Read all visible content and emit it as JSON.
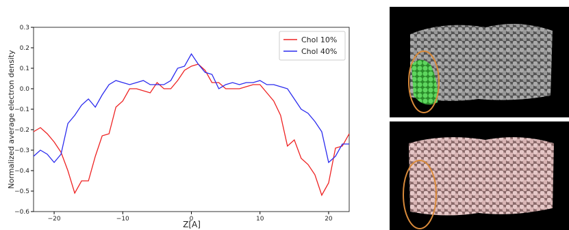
{
  "chart_data": {
    "type": "line",
    "xlabel": "Z[A]",
    "ylabel": "Normalized average electron density",
    "x": [
      -23,
      -22,
      -21,
      -20,
      -19,
      -18,
      -17,
      -16,
      -15,
      -14,
      -13,
      -12,
      -11,
      -10,
      -9,
      -8,
      -7,
      -6,
      -5,
      -4,
      -3,
      -2,
      -1,
      0,
      1,
      2,
      3,
      4,
      5,
      6,
      7,
      8,
      9,
      10,
      11,
      12,
      13,
      14,
      15,
      16,
      17,
      18,
      19,
      20,
      21,
      22,
      23
    ],
    "series": [
      {
        "name": "Chol 10%",
        "color": "#ee2222",
        "values": [
          -0.21,
          -0.19,
          -0.22,
          -0.26,
          -0.31,
          -0.4,
          -0.51,
          -0.45,
          -0.45,
          -0.33,
          -0.23,
          -0.22,
          -0.09,
          -0.06,
          0.0,
          0.0,
          -0.01,
          -0.02,
          0.03,
          0.0,
          0.0,
          0.04,
          0.09,
          0.11,
          0.12,
          0.09,
          0.03,
          0.03,
          0.0,
          0.0,
          0.0,
          0.01,
          0.02,
          0.02,
          -0.02,
          -0.06,
          -0.13,
          -0.28,
          -0.25,
          -0.34,
          -0.37,
          -0.42,
          -0.52,
          -0.46,
          -0.29,
          -0.28,
          -0.22
        ]
      },
      {
        "name": "Chol 40%",
        "color": "#2a2aee",
        "values": [
          -0.33,
          -0.3,
          -0.32,
          -0.36,
          -0.32,
          -0.17,
          -0.13,
          -0.08,
          -0.05,
          -0.09,
          -0.03,
          0.02,
          0.04,
          0.03,
          0.02,
          0.03,
          0.04,
          0.02,
          0.02,
          0.02,
          0.04,
          0.1,
          0.11,
          0.17,
          0.12,
          0.08,
          0.07,
          0.0,
          0.02,
          0.03,
          0.02,
          0.03,
          0.03,
          0.04,
          0.02,
          0.02,
          0.01,
          0.0,
          -0.05,
          -0.1,
          -0.12,
          -0.16,
          -0.21,
          -0.36,
          -0.33,
          -0.27,
          -0.27
        ]
      }
    ],
    "xlim": [
      -23,
      23
    ],
    "ylim": [
      -0.6,
      0.3
    ],
    "xticks": [
      {
        "value": -20,
        "label": "−20"
      },
      {
        "value": -10,
        "label": "−10"
      },
      0,
      10,
      20
    ],
    "yticks": [
      0.3,
      0.2,
      0.1,
      {
        "value": 0,
        "label": "0.0"
      },
      {
        "value": -0.1,
        "label": "−0.1"
      },
      {
        "value": -0.2,
        "label": "−0.2"
      },
      {
        "value": -0.3,
        "label": "−0.3"
      },
      {
        "value": -0.4,
        "label": "−0.4"
      },
      {
        "value": -0.5,
        "label": "−0.5"
      },
      {
        "value": -0.6,
        "label": "−0.6"
      }
    ],
    "legend": "upper right"
  }
}
